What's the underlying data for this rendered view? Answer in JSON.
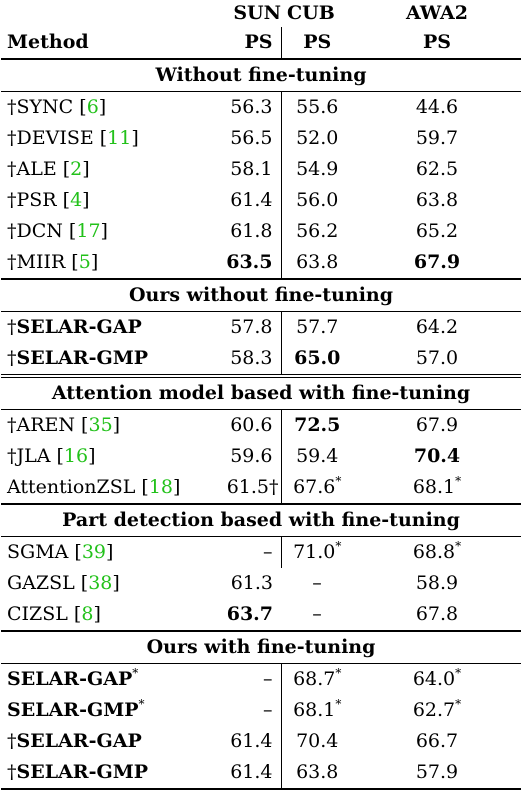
{
  "header": {
    "col1": "",
    "col2": "SUN",
    "col3": "CUB",
    "col4": "AWA2",
    "method": "Method",
    "metric_sun": "PS",
    "metric_cub": "PS",
    "metric_awa": "PS"
  },
  "sections": [
    {
      "title": "Without fine-tuning",
      "rows": [
        {
          "prefix": "†SYNC [",
          "ref": "6",
          "suffix": "]",
          "sun": "56.3",
          "cub": "55.6",
          "awa": "44.6"
        },
        {
          "prefix": "†DEVISE [",
          "ref": "11",
          "suffix": "]",
          "sun": "56.5",
          "cub": "52.0",
          "awa": "59.7"
        },
        {
          "prefix": "†ALE [",
          "ref": "2",
          "suffix": "]",
          "sun": "58.1",
          "cub": "54.9",
          "awa": "62.5"
        },
        {
          "prefix": "†PSR [",
          "ref": "4",
          "suffix": "]",
          "sun": "61.4",
          "cub": "56.0",
          "awa": "63.8"
        },
        {
          "prefix": "†DCN [",
          "ref": "17",
          "suffix": "]",
          "sun": "61.8",
          "cub": "56.2",
          "awa": "65.2"
        },
        {
          "prefix": "†MIIR [",
          "ref": "5",
          "suffix": "]",
          "sun": "63.5",
          "cub": "63.8",
          "awa": "67.9"
        }
      ]
    },
    {
      "title": "Ours without fine-tuning",
      "rows": [
        {
          "prefix": "†",
          "name": "SELAR-GAP",
          "sun": "57.8",
          "cub": "57.7",
          "awa": "64.2"
        },
        {
          "prefix": "†",
          "name": "SELAR-GMP",
          "sun": "58.3",
          "cub": "65.0",
          "awa": "57.0"
        }
      ]
    },
    {
      "title": "Attention model based with fine-tuning",
      "rows": [
        {
          "prefix": "†AREN [",
          "ref": "35",
          "suffix": "]",
          "sun": "60.6",
          "cub": "72.5",
          "awa": "67.9"
        },
        {
          "prefix": "†JLA [",
          "ref": "16",
          "suffix": "]",
          "sun": "59.6",
          "cub": "59.4",
          "awa": "70.4"
        },
        {
          "prefix": "AttentionZSL [",
          "ref": "18",
          "suffix": "]",
          "sun": "61.5†",
          "cub": "67.6",
          "cub_sup": "*",
          "awa": "68.1",
          "awa_sup": "*"
        }
      ]
    },
    {
      "title": "Part detection based with fine-tuning",
      "rows": [
        {
          "prefix": "SGMA [",
          "ref": "39",
          "suffix": "]",
          "sun": "–",
          "cub": "71.0",
          "cub_sup": "*",
          "awa": "68.8",
          "awa_sup": "*"
        },
        {
          "prefix": "GAZSL [",
          "ref": "38",
          "suffix": "]",
          "sun": "61.3",
          "cub": "–",
          "awa": "58.9"
        },
        {
          "prefix": "CIZSL [",
          "ref": "8",
          "suffix": "]",
          "sun": "63.7",
          "cub": "–",
          "awa": "67.8"
        }
      ]
    },
    {
      "title": "Ours with fine-tuning",
      "rows": [
        {
          "name": "SELAR-GAP",
          "name_sup": "*",
          "sun": "–",
          "cub": "68.7",
          "cub_sup": "*",
          "awa": "64.0",
          "awa_sup": "*"
        },
        {
          "name": "SELAR-GMP",
          "name_sup": "*",
          "sun": "–",
          "cub": "68.1",
          "cub_sup": "*",
          "awa": "62.7",
          "awa_sup": "*"
        },
        {
          "prefix": "†",
          "name": "SELAR-GAP",
          "sun": "61.4",
          "cub": "70.4",
          "awa": "66.7"
        },
        {
          "prefix": "†",
          "name": "SELAR-GMP",
          "sun": "61.4",
          "cub": "63.8",
          "awa": "57.9"
        }
      ]
    }
  ]
}
